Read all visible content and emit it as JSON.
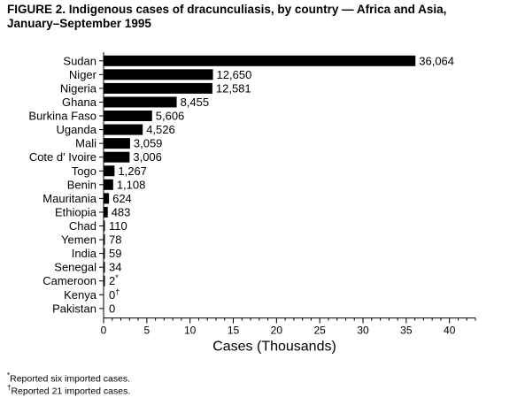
{
  "title_line1": "FIGURE 2. Indigenous cases of dracunculiasis, by country — Africa and Asia,",
  "title_line2": "January–September 1995",
  "chart_data": {
    "type": "bar",
    "orientation": "horizontal",
    "categories": [
      "Sudan",
      "Niger",
      "Nigeria",
      "Ghana",
      "Burkina Faso",
      "Uganda",
      "Mali",
      "Cote d' Ivoire",
      "Togo",
      "Benin",
      "Mauritania",
      "Ethiopia",
      "Chad",
      "Yemen",
      "India",
      "Senegal",
      "Cameroon",
      "Kenya",
      "Pakistan"
    ],
    "values": [
      36064,
      12650,
      12581,
      8455,
      5606,
      4526,
      3059,
      3006,
      1267,
      1108,
      624,
      483,
      110,
      78,
      59,
      34,
      2,
      0,
      0
    ],
    "value_labels": [
      "36,064",
      "12,650",
      "12,581",
      "8,455",
      "5,606",
      "4,526",
      "3,059",
      "3,006",
      "1,267",
      "1,108",
      "624",
      "483",
      "110",
      "78",
      "59",
      "34",
      "2",
      "0",
      "0"
    ],
    "value_label_marks": {
      "16": "*",
      "17": "†"
    },
    "x_ticks": [
      "0",
      "5",
      "10",
      "15",
      "20",
      "25",
      "30",
      "35",
      "40"
    ],
    "xlabel": "Cases (Thousands)",
    "xlim": [
      0,
      43
    ],
    "bar_color": "#000000",
    "grid": false
  },
  "footnotes": {
    "note1_mark": "*",
    "note1_text": "Reported six imported cases.",
    "note2_mark": "†",
    "note2_text": "Reported 21 imported cases."
  }
}
